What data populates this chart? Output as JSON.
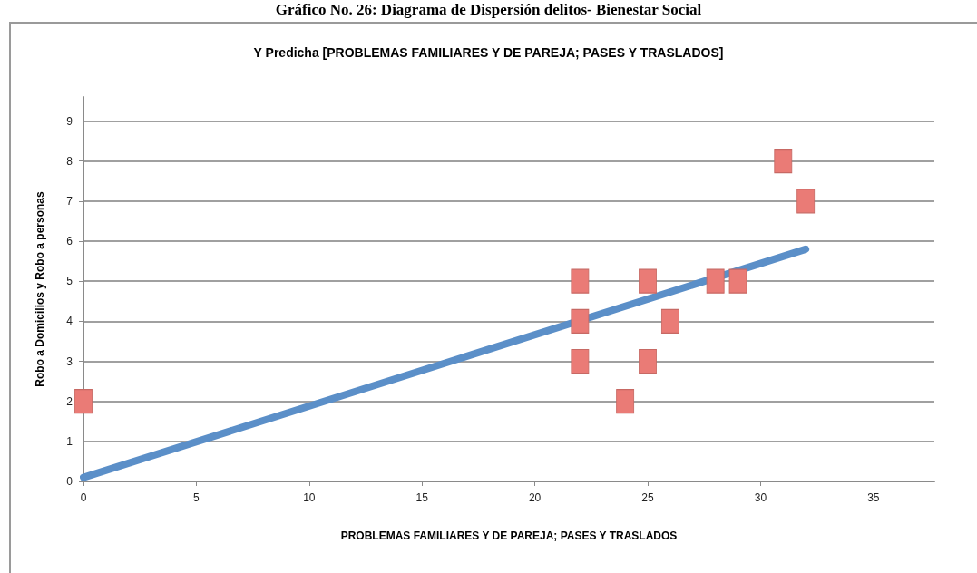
{
  "chart_data": {
    "type": "scatter",
    "title": "Y Predicha [PROBLEMAS FAMILIARES Y DE PAREJA; PASES Y TRASLADOS]",
    "annotations": [
      "Gráfico No. 26: Diagrama de Dispersión delitos- Bienestar Social"
    ],
    "xlabel": "PROBLEMAS FAMILIARES Y DE PAREJA; PASES Y TRASLADOS",
    "ylabel": "Robo a Domicilios y Robo a personas",
    "xlim": [
      0,
      37.7
    ],
    "xticks": [
      0,
      5,
      10,
      15,
      20,
      25,
      30,
      35
    ],
    "ylim": [
      0,
      9.6
    ],
    "yticks": [
      0,
      1,
      2,
      3,
      4,
      5,
      6,
      7,
      8,
      9
    ],
    "grid": "y",
    "marker": "square",
    "series": [
      {
        "type": "line",
        "color": "#5b8fc8",
        "marker": "none",
        "x": [
          0,
          32
        ],
        "values": [
          0.1,
          5.8
        ]
      },
      {
        "type": "scatter",
        "color": "#ea7b76",
        "x": [
          0,
          22,
          22,
          22,
          24,
          25,
          25,
          26,
          28,
          29,
          31,
          32
        ],
        "values": [
          2,
          5,
          4,
          3,
          2,
          5,
          3,
          4,
          5,
          5,
          8,
          7
        ]
      }
    ]
  }
}
